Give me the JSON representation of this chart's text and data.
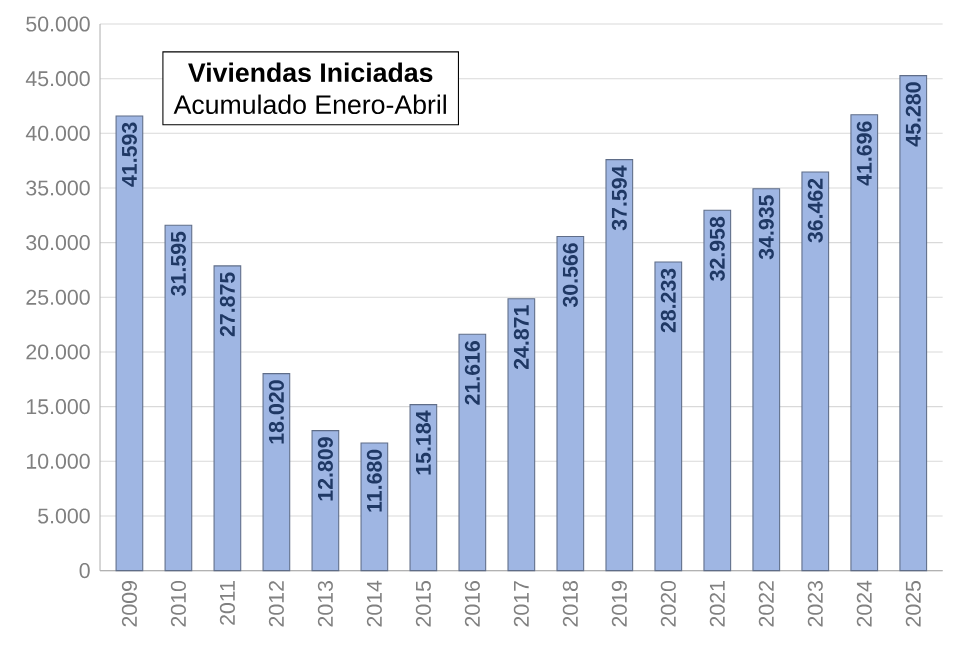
{
  "chart_data": {
    "type": "bar",
    "title": "Viviendas Iniciadas",
    "subtitle": "Acumulado Enero-Abril",
    "categories": [
      "2009",
      "2010",
      "2011",
      "2012",
      "2013",
      "2014",
      "2015",
      "2016",
      "2017",
      "2018",
      "2019",
      "2020",
      "2021",
      "2022",
      "2023",
      "2024",
      "2025"
    ],
    "values": [
      41593,
      31595,
      27875,
      18020,
      12809,
      11680,
      15184,
      21616,
      24871,
      30566,
      37594,
      28233,
      32958,
      34935,
      36462,
      41696,
      45280
    ],
    "value_labels": [
      "41.593",
      "31.595",
      "27.875",
      "18.020",
      "12.809",
      "11.680",
      "15.184",
      "21.616",
      "24.871",
      "30.566",
      "37.594",
      "28.233",
      "32.958",
      "34.935",
      "36.462",
      "41.696",
      "45.280"
    ],
    "color": "#9fb6e3",
    "ylim": [
      0,
      50000
    ],
    "yticks": [
      {
        "value": 0,
        "label": "0"
      },
      {
        "value": 5000,
        "label": "5.000"
      },
      {
        "value": 10000,
        "label": "10.000"
      },
      {
        "value": 15000,
        "label": "15.000"
      },
      {
        "value": 20000,
        "label": "20.000"
      },
      {
        "value": 25000,
        "label": "25.000"
      },
      {
        "value": 30000,
        "label": "30.000"
      },
      {
        "value": 35000,
        "label": "35.000"
      },
      {
        "value": 40000,
        "label": "40.000"
      },
      {
        "value": 45000,
        "label": "45.000"
      },
      {
        "value": 50000,
        "label": "50.000"
      }
    ],
    "grid": "y"
  }
}
